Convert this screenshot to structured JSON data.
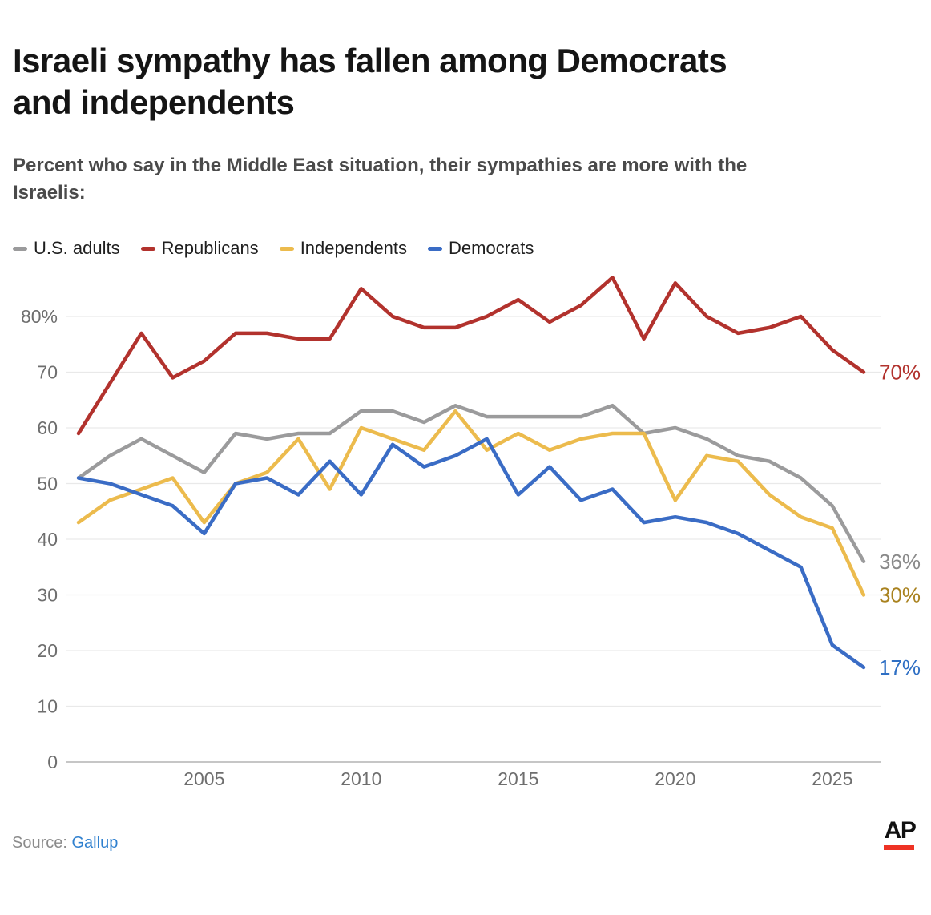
{
  "header": {
    "title_lines": [
      "Israeli sympathy has fallen among Democrats",
      "and independents"
    ],
    "subtitle_lines": [
      "Percent who say in the Middle East situation, their sympathies are more with the",
      "Israelis:"
    ]
  },
  "legend": [
    {
      "label": "U.S. adults",
      "color": "#9b9b9c"
    },
    {
      "label": "Republicans",
      "color": "#b2322d"
    },
    {
      "label": "Independents",
      "color": "#ecbb4d"
    },
    {
      "label": "Democrats",
      "color": "#3a6cc5"
    }
  ],
  "chart_data": {
    "type": "line",
    "x": [
      2001,
      2002,
      2003,
      2004,
      2005,
      2006,
      2007,
      2008,
      2009,
      2010,
      2011,
      2012,
      2013,
      2014,
      2015,
      2016,
      2017,
      2018,
      2019,
      2020,
      2021,
      2022,
      2023,
      2024,
      2025,
      2026
    ],
    "series": [
      {
        "id": "us-adults",
        "name": "U.S. adults",
        "color": "#9b9b9c",
        "end_label": "36%",
        "end_label_color": "#8a8a8a",
        "values": [
          51,
          55,
          58,
          55,
          52,
          59,
          58,
          59,
          59,
          63,
          63,
          61,
          64,
          62,
          62,
          62,
          62,
          64,
          59,
          60,
          58,
          55,
          54,
          51,
          46,
          36
        ]
      },
      {
        "id": "republicans",
        "name": "Republicans",
        "color": "#b2322d",
        "end_label": "70%",
        "end_label_color": "#b2322d",
        "values": [
          59,
          68,
          77,
          69,
          72,
          77,
          77,
          76,
          76,
          85,
          80,
          78,
          78,
          80,
          83,
          79,
          82,
          87,
          76,
          86,
          80,
          77,
          78,
          80,
          74,
          70
        ]
      },
      {
        "id": "independents",
        "name": "Independents",
        "color": "#ecbb4d",
        "end_label": "30%",
        "end_label_color": "#a9821f",
        "values": [
          43,
          47,
          49,
          51,
          43,
          50,
          52,
          58,
          49,
          60,
          58,
          56,
          63,
          56,
          59,
          56,
          58,
          59,
          59,
          47,
          55,
          54,
          48,
          44,
          42,
          30
        ]
      },
      {
        "id": "democrats",
        "name": "Democrats",
        "color": "#3a6cc5",
        "end_label": "17%",
        "end_label_color": "#2e6fc4",
        "values": [
          51,
          50,
          48,
          46,
          41,
          50,
          51,
          48,
          54,
          48,
          57,
          53,
          55,
          58,
          48,
          53,
          47,
          49,
          43,
          44,
          43,
          41,
          38,
          35,
          21,
          17
        ]
      }
    ],
    "x_ticks": [
      "2005",
      "2010",
      "2015",
      "2020",
      "2025"
    ],
    "x_tick_years": [
      2005,
      2010,
      2015,
      2020,
      2025
    ],
    "y_ticks": [
      {
        "value": 0,
        "label": "0"
      },
      {
        "value": 10,
        "label": "10"
      },
      {
        "value": 20,
        "label": "20"
      },
      {
        "value": 30,
        "label": "30"
      },
      {
        "value": 40,
        "label": "40"
      },
      {
        "value": 50,
        "label": "50"
      },
      {
        "value": 60,
        "label": "60"
      },
      {
        "value": 70,
        "label": "70"
      },
      {
        "value": 80,
        "label": "80%"
      }
    ],
    "ylim": [
      0,
      88
    ],
    "grid": true,
    "legend_position": "top"
  },
  "source": {
    "prefix": "Source:",
    "link": "Gallup"
  },
  "logo": {
    "text": "AP",
    "bar_color": "#ee3224"
  }
}
